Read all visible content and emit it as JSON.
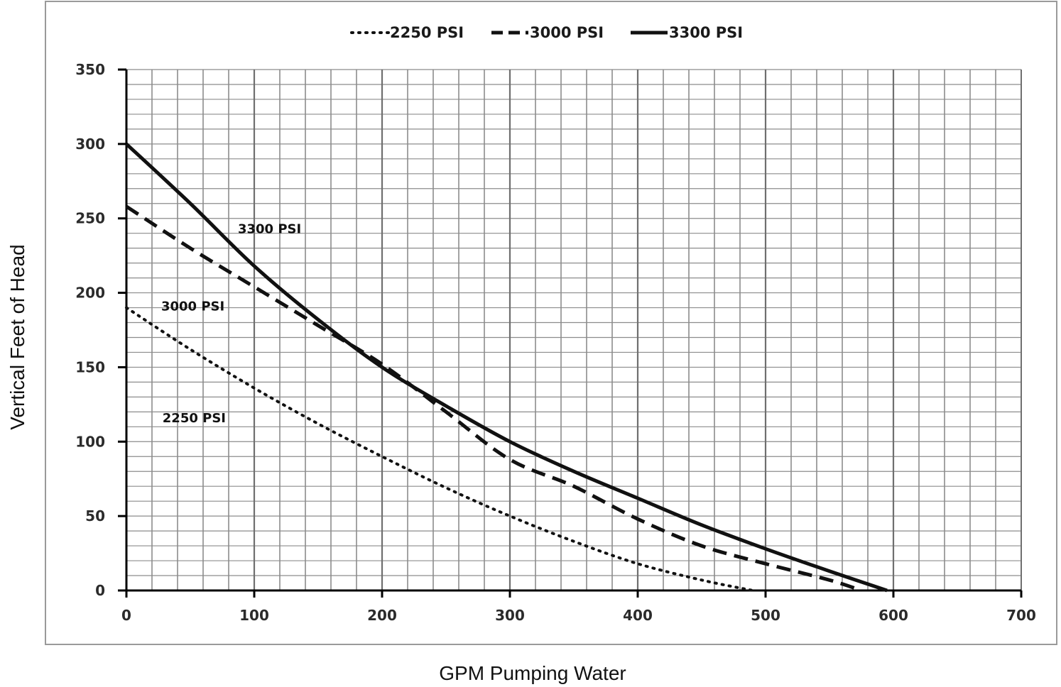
{
  "chart_data": {
    "type": "line",
    "title": "",
    "xlabel": "GPM Pumping Water",
    "ylabel": "Vertical Feet of Head",
    "xlim": [
      0,
      700
    ],
    "ylim": [
      0,
      350
    ],
    "x_ticks": [
      0,
      100,
      200,
      300,
      400,
      500,
      600,
      700
    ],
    "y_ticks": [
      0,
      50,
      100,
      150,
      200,
      250,
      300,
      350
    ],
    "grid": true,
    "legend_position": "top-center",
    "series": [
      {
        "name": "2250 PSI",
        "style": "dotted",
        "x": [
          0,
          50,
          100,
          150,
          200,
          250,
          300,
          350,
          400,
          450,
          490
        ],
        "y": [
          190,
          162,
          136,
          112,
          90,
          69,
          50,
          33,
          18,
          7,
          0
        ]
      },
      {
        "name": "3000 PSI",
        "style": "dashed",
        "x": [
          0,
          50,
          100,
          150,
          200,
          250,
          300,
          350,
          400,
          450,
          500,
          550,
          575
        ],
        "y": [
          258,
          230,
          204,
          178,
          152,
          120,
          88,
          70,
          48,
          30,
          18,
          7,
          0
        ]
      },
      {
        "name": "3300 PSI",
        "style": "solid",
        "x": [
          0,
          50,
          100,
          150,
          200,
          250,
          300,
          350,
          400,
          450,
          500,
          550,
          595
        ],
        "y": [
          300,
          260,
          218,
          182,
          150,
          124,
          100,
          80,
          62,
          44,
          28,
          13,
          0
        ]
      }
    ],
    "annotations": [
      {
        "text": "3300 PSI",
        "x": 112,
        "y": 240
      },
      {
        "text": "3000 PSI",
        "x": 52,
        "y": 188
      },
      {
        "text": "2250 PSI",
        "x": 53,
        "y": 113
      }
    ]
  }
}
